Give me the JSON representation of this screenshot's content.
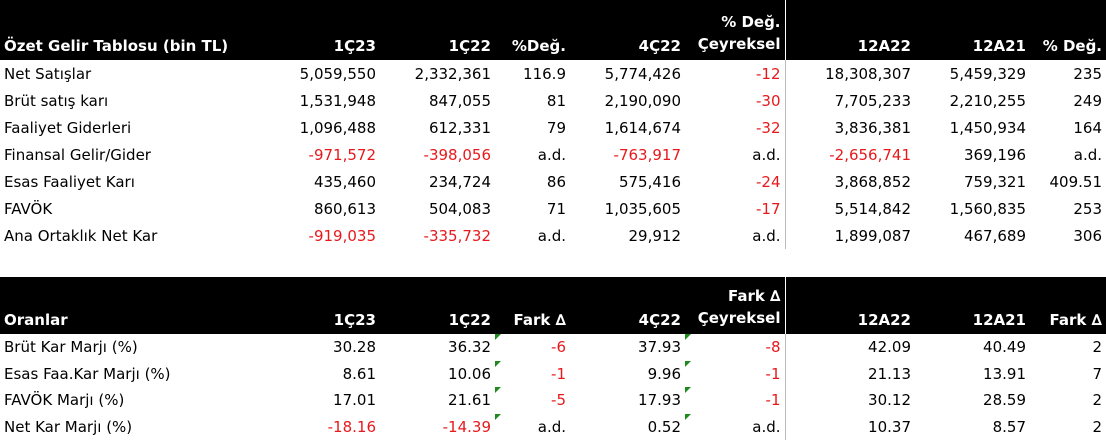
{
  "income": {
    "headers": [
      "Özet Gelir Tablosu (bin TL)",
      "1Ç23",
      "1Ç22",
      "%Değ.",
      "4Ç22",
      "% Değ.|Çeyreksel",
      "12A22",
      "12A21",
      "% Değ."
    ],
    "rows": [
      [
        "Net Satışlar",
        "5,059,550",
        "2,332,361",
        "116.9",
        "5,774,426",
        "-12",
        "18,308,307",
        "5,459,329",
        "235"
      ],
      [
        "Brüt satış karı",
        "1,531,948",
        "847,055",
        "81",
        "2,190,090",
        "-30",
        "7,705,233",
        "2,210,255",
        "249"
      ],
      [
        "Faaliyet Giderleri",
        "1,096,488",
        "612,331",
        "79",
        "1,614,674",
        "-32",
        "3,836,381",
        "1,450,934",
        "164"
      ],
      [
        "Finansal Gelir/Gider",
        "-971,572",
        "-398,056",
        "a.d.",
        "-763,917",
        "a.d.",
        "-2,656,741",
        "369,196",
        "a.d."
      ],
      [
        "Esas Faaliyet Karı",
        "435,460",
        "234,724",
        "86",
        "575,416",
        "-24",
        "3,868,852",
        "759,321",
        "409.51"
      ],
      [
        "FAVÖK",
        "860,613",
        "504,083",
        "71",
        "1,035,605",
        "-17",
        "5,514,842",
        "1,560,835",
        "253"
      ],
      [
        "Ana Ortaklık Net Kar",
        "-919,035",
        "-335,732",
        "a.d.",
        "29,912",
        "a.d.",
        "1,899,087",
        "467,689",
        "306"
      ]
    ]
  },
  "ratios": {
    "headers": [
      "Oranlar",
      "1Ç23",
      "1Ç22",
      "Fark ∆",
      "4Ç22",
      "Fark ∆|Çeyreksel",
      "12A22",
      "12A21",
      "Fark ∆"
    ],
    "rows": [
      [
        "Brüt Kar Marjı (%)",
        "30.28",
        "36.32",
        "-6",
        "37.93",
        "-8",
        "42.09",
        "40.49",
        "2"
      ],
      [
        "Esas Faa.Kar Marjı (%)",
        "8.61",
        "10.06",
        "-1",
        "9.96",
        "-1",
        "21.13",
        "13.91",
        "7"
      ],
      [
        "FAVÖK Marjı (%)",
        "17.01",
        "21.61",
        "-5",
        "17.93",
        "-1",
        "30.12",
        "28.59",
        "2"
      ],
      [
        "Net Kar Marjı (%)",
        "-18.16",
        "-14.39",
        "a.d.",
        "0.52",
        "a.d.",
        "10.37",
        "8.57",
        "2"
      ]
    ]
  },
  "colors": {
    "negative": "#e8191c",
    "header_bg": "#000000",
    "header_text": "#ffffff",
    "comment_marker": "#1e8a1e"
  }
}
